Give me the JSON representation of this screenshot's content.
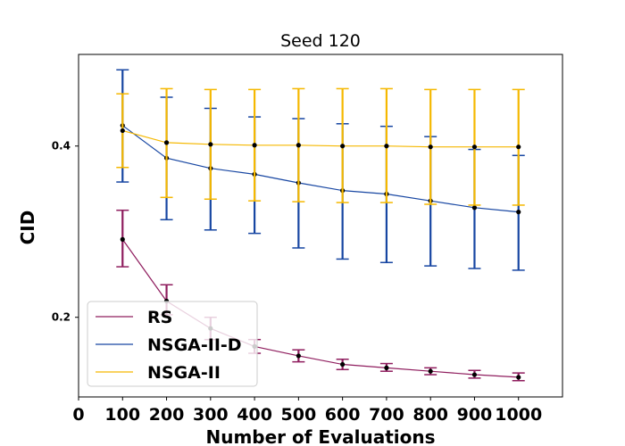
{
  "chart_data": {
    "type": "line",
    "title": "Seed 120",
    "xlabel": "Number of Evaluations",
    "ylabel": "CID",
    "x": [
      100,
      200,
      300,
      400,
      500,
      600,
      700,
      800,
      900,
      1000
    ],
    "xlim": [
      0,
      1100
    ],
    "ylim": [
      0.107,
      0.507
    ],
    "xticks": [
      0,
      100,
      200,
      300,
      400,
      500,
      600,
      700,
      800,
      900,
      1000
    ],
    "xtick_labels": [
      "0",
      "100",
      "200",
      "300",
      "400",
      "500",
      "600",
      "700",
      "800",
      "900",
      "1000"
    ],
    "yticks": [
      0.2,
      0.4
    ],
    "ytick_labels": [
      "0.2",
      "0.4"
    ],
    "grid": false,
    "legend_position": "lower-left",
    "series": [
      {
        "name": "RS",
        "color": "#8f1d5e",
        "values": [
          0.291,
          0.219,
          0.187,
          0.166,
          0.155,
          0.145,
          0.141,
          0.137,
          0.133,
          0.13
        ],
        "err_low": [
          0.259,
          0.203,
          0.174,
          0.158,
          0.148,
          0.139,
          0.137,
          0.133,
          0.129,
          0.126
        ],
        "err_high": [
          0.325,
          0.238,
          0.2,
          0.174,
          0.162,
          0.151,
          0.146,
          0.141,
          0.138,
          0.135
        ]
      },
      {
        "name": "NSGA-II-D",
        "color": "#1746a2",
        "values": [
          0.424,
          0.386,
          0.374,
          0.367,
          0.357,
          0.348,
          0.344,
          0.336,
          0.328,
          0.323
        ],
        "err_low": [
          0.358,
          0.314,
          0.302,
          0.298,
          0.281,
          0.268,
          0.264,
          0.26,
          0.257,
          0.255
        ],
        "err_high": [
          0.489,
          0.457,
          0.444,
          0.434,
          0.432,
          0.426,
          0.423,
          0.411,
          0.396,
          0.389
        ]
      },
      {
        "name": "NSGA-II",
        "color": "#f5b800",
        "values": [
          0.418,
          0.404,
          0.402,
          0.401,
          0.401,
          0.4,
          0.4,
          0.399,
          0.399,
          0.399
        ],
        "err_low": [
          0.375,
          0.34,
          0.338,
          0.336,
          0.335,
          0.334,
          0.334,
          0.332,
          0.331,
          0.331
        ],
        "err_high": [
          0.461,
          0.467,
          0.466,
          0.466,
          0.467,
          0.467,
          0.467,
          0.466,
          0.466,
          0.466
        ]
      }
    ]
  }
}
